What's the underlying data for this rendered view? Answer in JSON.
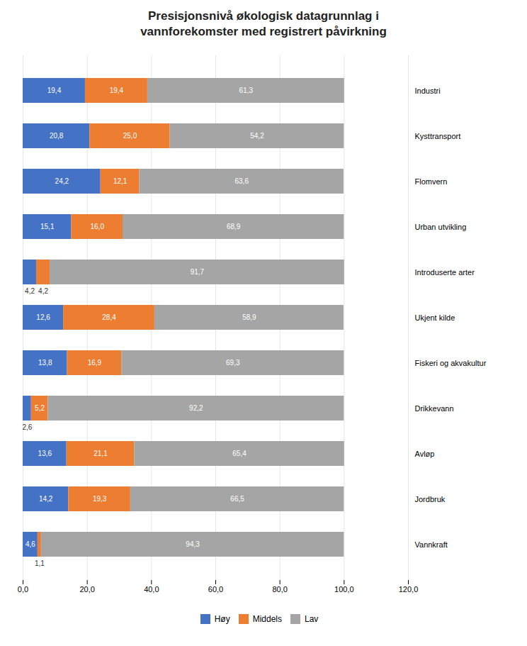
{
  "chart_data": {
    "type": "bar",
    "orientation": "horizontal",
    "stacked": true,
    "title": "Presisjonsnivå økologisk datagrunnlag i\nvannforekomster med registrert påvirkning",
    "categories": [
      "Industri",
      "Kysttransport",
      "Flomvern",
      "Urban utvikling",
      "Introduserte arter",
      "Ukjent kilde",
      "Fiskeri og akvakultur",
      "Drikkevann",
      "Avløp",
      "Jordbruk",
      "Vannkraft"
    ],
    "series": [
      {
        "name": "Høy",
        "color": "#4472C4",
        "values": [
          19.4,
          20.8,
          24.2,
          15.1,
          4.2,
          12.6,
          13.8,
          2.6,
          13.6,
          14.2,
          4.6
        ],
        "value_labels": [
          "19,4",
          "20,8",
          "24,2",
          "15,1",
          "4,2",
          "12,6",
          "13,8",
          "2,6",
          "13,6",
          "14,2",
          "4,6"
        ]
      },
      {
        "name": "Middels",
        "color": "#ED7D31",
        "values": [
          19.4,
          25.0,
          12.1,
          16.0,
          4.2,
          28.4,
          16.9,
          5.2,
          21.1,
          19.3,
          1.1
        ],
        "value_labels": [
          "19,4",
          "25,0",
          "12,1",
          "16,0",
          "4,2",
          "28,4",
          "16,9",
          "5,2",
          "21,1",
          "19,3",
          "1,1"
        ]
      },
      {
        "name": "Lav",
        "color": "#A5A5A5",
        "values": [
          61.3,
          54.2,
          63.6,
          68.9,
          91.7,
          58.9,
          69.3,
          92.2,
          65.4,
          66.5,
          94.3
        ],
        "value_labels": [
          "61,3",
          "54,2",
          "63,6",
          "68,9",
          "91,7",
          "58,9",
          "69,3",
          "92,2",
          "65,4",
          "66,5",
          "94,3"
        ]
      }
    ],
    "xlim": [
      0,
      120
    ],
    "xticks": [
      {
        "value": 0,
        "label": "0,0"
      },
      {
        "value": 20,
        "label": "20,0"
      },
      {
        "value": 40,
        "label": "40,0"
      },
      {
        "value": 60,
        "label": "60,0"
      },
      {
        "value": 80,
        "label": "80,0"
      },
      {
        "value": 100,
        "label": "100,0"
      },
      {
        "value": 120,
        "label": "120,0"
      }
    ],
    "grid": true,
    "legend": "bottom",
    "data_labels": true
  }
}
